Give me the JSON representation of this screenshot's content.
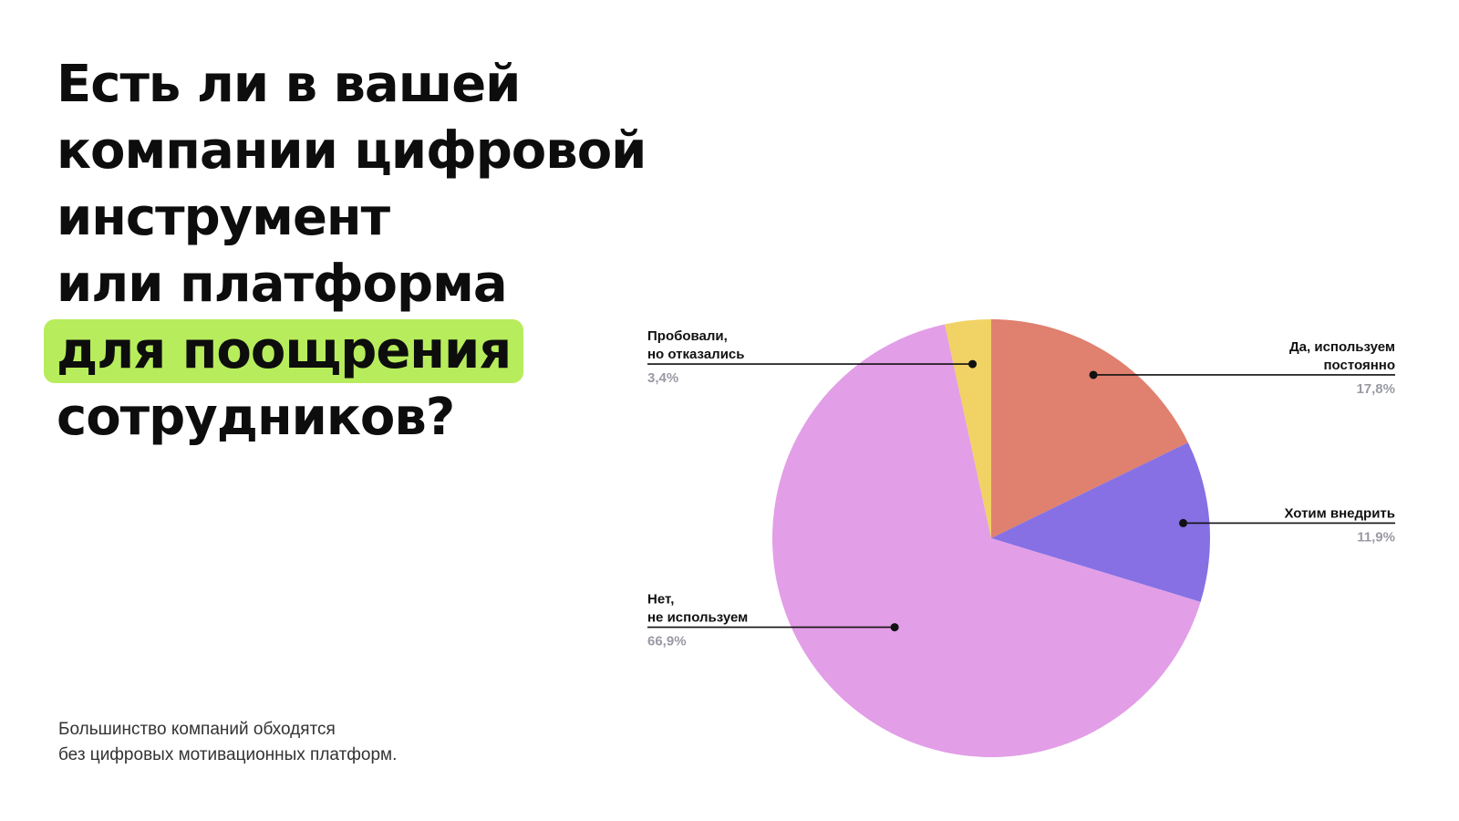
{
  "heading": {
    "lines": [
      "Есть ли в вашей",
      "компании цифровой",
      "инструмент",
      "или платформа"
    ],
    "highlight": "для поощрения",
    "last_line": "сотрудников?"
  },
  "subtitle": {
    "line1": "Большинство компаний обходятся",
    "line2": "без цифровых мотивационных платформ."
  },
  "chart_data": {
    "type": "pie",
    "title": "Есть ли в вашей компании цифровой инструмент или платформа для поощрения сотрудников?",
    "slices": [
      {
        "name_lines": [
          "Да, используем",
          "постоянно"
        ],
        "value": 17.8,
        "value_label": "17,8%",
        "color": "#e0806f",
        "label_side": "right"
      },
      {
        "name_lines": [
          "Хотим внедрить"
        ],
        "value": 11.9,
        "value_label": "11,9%",
        "color": "#8670e4",
        "label_side": "right"
      },
      {
        "name_lines": [
          "Нет,",
          "не используем"
        ],
        "value": 66.9,
        "value_label": "66,9%",
        "color": "#e29ee6",
        "label_side": "left"
      },
      {
        "name_lines": [
          "Пробовали,",
          "но отказались"
        ],
        "value": 3.4,
        "value_label": "3,4%",
        "color": "#f1d264",
        "label_side": "left"
      }
    ],
    "start": "12 o'clock",
    "direction": "clockwise",
    "legend": "none"
  }
}
